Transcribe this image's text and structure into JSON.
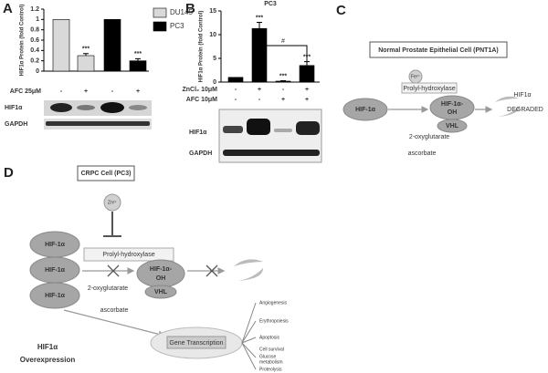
{
  "panel_labels": [
    "A",
    "B",
    "C",
    "D"
  ],
  "chart_data": [
    {
      "type": "bar",
      "y_label": "HIF1α Protein (fold Control)",
      "ylim": [
        0,
        1.2
      ],
      "yticks": [
        0,
        0.2,
        0.4,
        0.6,
        0.8,
        1,
        1.2
      ],
      "legend": "upper right",
      "series": [
        {
          "name": "DU145",
          "color": "#d9d9d9",
          "values": [
            1,
            0.3,
            null,
            null
          ],
          "errors": [
            null,
            0.04,
            null,
            null
          ]
        },
        {
          "name": "PC3",
          "color": "#000000",
          "values": [
            null,
            null,
            1,
            0.2
          ],
          "errors": [
            null,
            null,
            null,
            0.04
          ]
        }
      ],
      "significance": [
        null,
        "***",
        null,
        "***"
      ],
      "treatments": [
        {
          "name": "AFC 25μM",
          "levels": [
            "-",
            "+",
            "-",
            "+"
          ]
        }
      ]
    },
    {
      "type": "bar",
      "title": "PC3",
      "y_label": "HIF1α Protein (fold Control)",
      "ylim": [
        0,
        15
      ],
      "yticks": [
        0,
        5,
        10,
        15
      ],
      "series": [
        {
          "color": "#000000",
          "values": [
            1,
            11.3,
            0.2,
            3.5
          ],
          "errors": [
            null,
            1.3,
            0.1,
            0.8
          ]
        }
      ],
      "significance": [
        null,
        "***",
        "***",
        "***"
      ],
      "bracket_label": "#",
      "treatments": [
        {
          "name": "ZnCl₂ 10μM",
          "levels": [
            "-",
            "+",
            "-",
            "+"
          ]
        },
        {
          "name": "AFC 10μM",
          "levels": [
            "-",
            "-",
            "+",
            "+"
          ]
        }
      ]
    }
  ],
  "blots": {
    "a": [
      "HIF1α",
      "GAPDH"
    ],
    "b": [
      "HIF1α",
      "GAPDH"
    ]
  },
  "diagram_c": {
    "title": "Normal Prostate Epithelial Cell (PNT1A)",
    "cofactor": "Fe²⁺",
    "enzyme": "Prolyl-hydroxylase",
    "substrate": "HIF-1α",
    "product": [
      "HIF-1α-",
      "OH"
    ],
    "vhl": "VHL",
    "reagents": [
      "2-oxyglutarate",
      "ascorbate"
    ],
    "result": [
      "HIF1α",
      "DEGRADED"
    ]
  },
  "diagram_d": {
    "title": "CRPC Cell (PC3)",
    "inhibitor": "Zn²⁺",
    "substrate": [
      "HIF-1α",
      "HIF-1α",
      "HIF-1α"
    ],
    "enzyme": "Prolyl-hydroxylase",
    "product": [
      "HIF-1α-",
      "OH"
    ],
    "vhl": "VHL",
    "reagents": [
      "2-oxyglutarate",
      "ascorbate"
    ],
    "transcription": "Gene Transcription",
    "outcome": [
      "HIF1α",
      "Overexpression"
    ],
    "effects": [
      "Angiogenesis",
      "Erythropoiesis",
      "Apoptosis",
      "Cell survival",
      "Glucose",
      "metabolism",
      "Proteolysis"
    ]
  }
}
